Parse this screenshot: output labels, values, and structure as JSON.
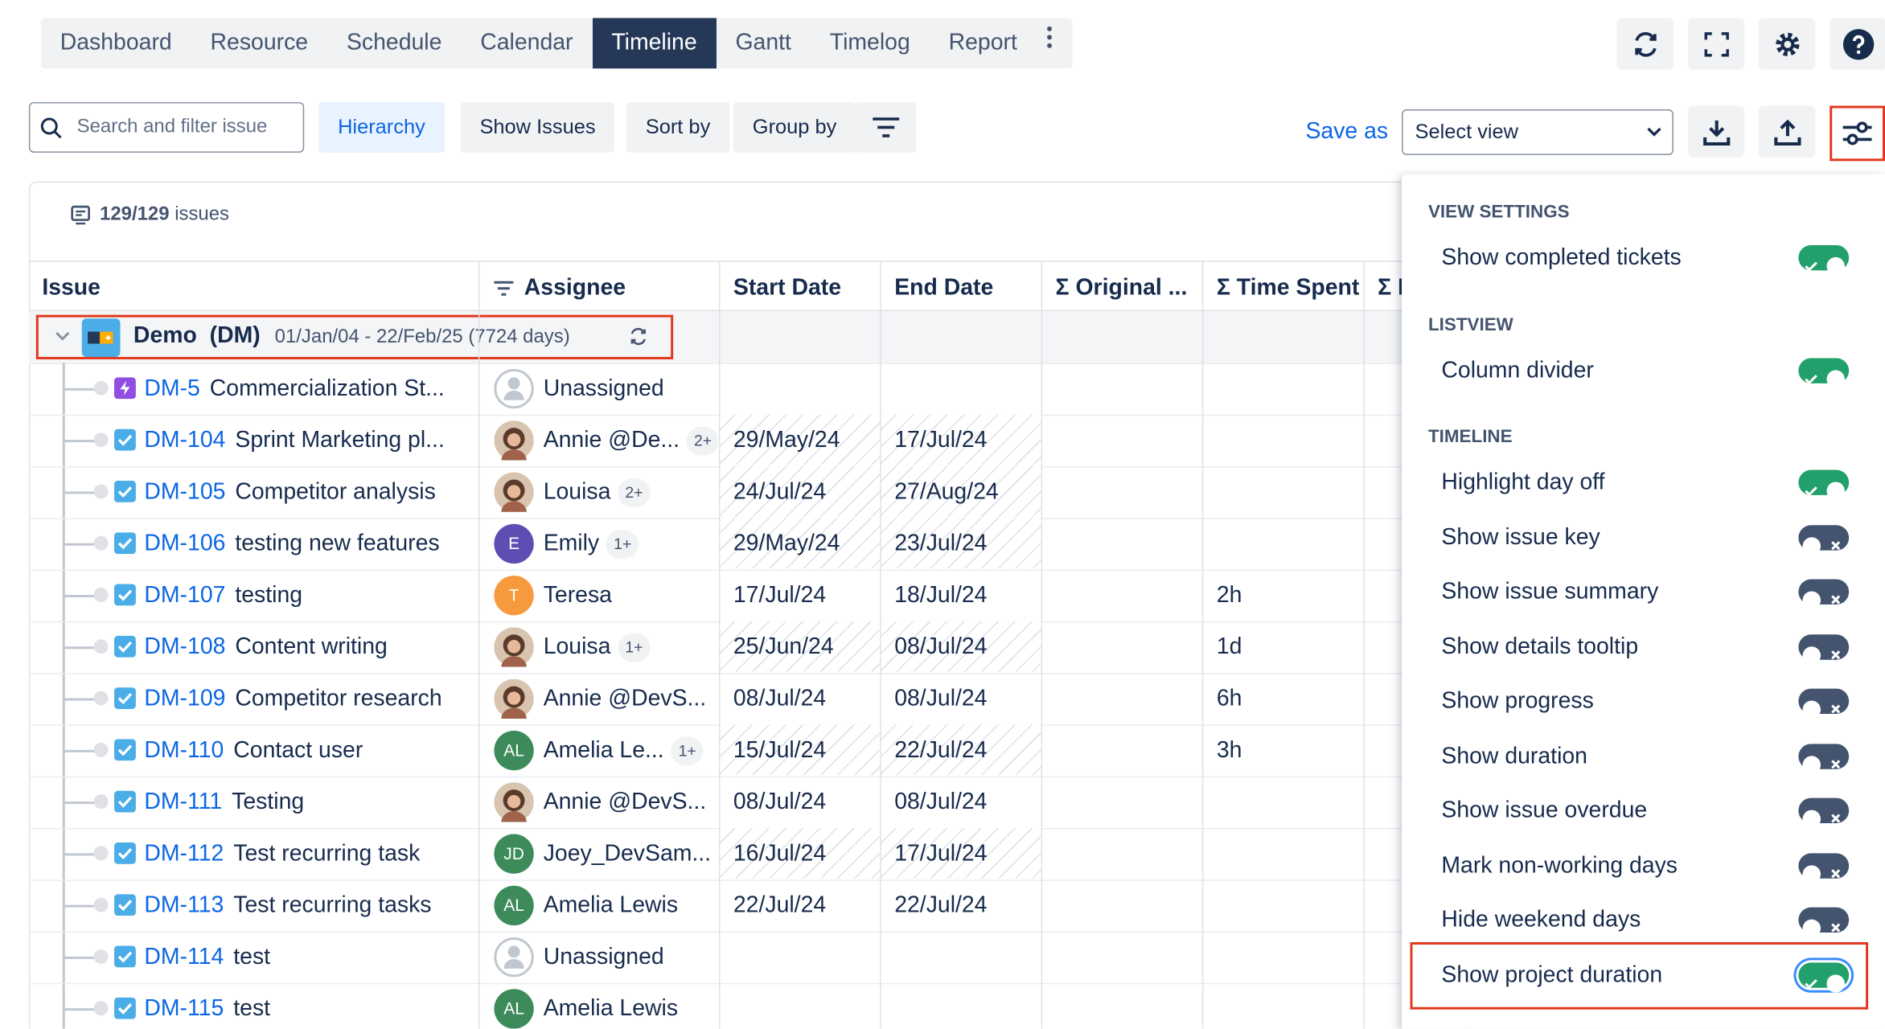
{
  "tabs": {
    "items": [
      "Dashboard",
      "Resource",
      "Schedule",
      "Calendar",
      "Timeline",
      "Gantt",
      "Timelog",
      "Report"
    ],
    "active": 4
  },
  "toolbar": {
    "search_placeholder": "Search and filter issue",
    "buttons": [
      "Hierarchy",
      "Show Issues",
      "Sort by",
      "Group by"
    ],
    "active_button": 0,
    "save_as": "Save as",
    "select_view": "Select view"
  },
  "summary": {
    "issues": "129/129",
    "issues_label": "issues"
  },
  "table": {
    "columns": [
      "Issue",
      "Assignee",
      "Start Date",
      "End Date",
      "Σ Original ...",
      "Σ Time Spent",
      "Σ I"
    ],
    "project": {
      "name": "Demo",
      "key": "(DM)",
      "dates": "01/Jan/04 - 22/Feb/25 (7724 days)"
    },
    "rows": [
      {
        "key": "DM-5",
        "summary": "Commercialization St...",
        "type": "epic",
        "assignee": "Unassigned",
        "avatar": "none"
      },
      {
        "key": "DM-104",
        "summary": "Sprint Marketing pl...",
        "type": "task",
        "assignee": "Annie @De...",
        "avatar": "photo",
        "extra": "2+",
        "start": "29/May/24",
        "end": "17/Jul/24",
        "hatched": true
      },
      {
        "key": "DM-105",
        "summary": "Competitor analysis",
        "type": "task",
        "assignee": "Louisa",
        "avatar": "photo",
        "extra": "2+",
        "start": "24/Jul/24",
        "end": "27/Aug/24",
        "hatched": true
      },
      {
        "key": "DM-106",
        "summary": "testing new features",
        "type": "task",
        "assignee": "Emily",
        "avatar": "initials",
        "initials": "E",
        "avatar_color": "#5e4db2",
        "extra": "1+",
        "start": "29/May/24",
        "end": "23/Jul/24",
        "hatched": true
      },
      {
        "key": "DM-107",
        "summary": "testing",
        "type": "task",
        "assignee": "Teresa",
        "avatar": "initials",
        "initials": "T",
        "avatar_color": "#f79a3e",
        "start": "17/Jul/24",
        "end": "18/Jul/24",
        "spent": "2h"
      },
      {
        "key": "DM-108",
        "summary": "Content writing",
        "type": "task",
        "assignee": "Louisa",
        "avatar": "photo",
        "extra": "1+",
        "start": "25/Jun/24",
        "end": "08/Jul/24",
        "spent": "1d",
        "hatched": true
      },
      {
        "key": "DM-109",
        "summary": "Competitor research",
        "type": "task",
        "assignee": "Annie @DevS...",
        "avatar": "photo",
        "start": "08/Jul/24",
        "end": "08/Jul/24",
        "spent": "6h"
      },
      {
        "key": "DM-110",
        "summary": "Contact user",
        "type": "task",
        "assignee": "Amelia Le...",
        "avatar": "initials",
        "initials": "AL",
        "avatar_color": "#3d8a5a",
        "extra": "1+",
        "start": "15/Jul/24",
        "end": "22/Jul/24",
        "spent": "3h",
        "hatched": true
      },
      {
        "key": "DM-111",
        "summary": "Testing",
        "type": "task",
        "assignee": "Annie @DevS...",
        "avatar": "photo",
        "start": "08/Jul/24",
        "end": "08/Jul/24"
      },
      {
        "key": "DM-112",
        "summary": "Test recurring task",
        "type": "task",
        "assignee": "Joey_DevSam...",
        "avatar": "initials",
        "initials": "JD",
        "avatar_color": "#3d8a5a",
        "start": "16/Jul/24",
        "end": "17/Jul/24",
        "hatched": true
      },
      {
        "key": "DM-113",
        "summary": "Test recurring tasks",
        "type": "task",
        "assignee": "Amelia Lewis",
        "avatar": "initials",
        "initials": "AL",
        "avatar_color": "#3d8a5a",
        "start": "22/Jul/24",
        "end": "22/Jul/24"
      },
      {
        "key": "DM-114",
        "summary": "test",
        "type": "task",
        "assignee": "Unassigned",
        "avatar": "none"
      },
      {
        "key": "DM-115",
        "summary": "test",
        "type": "task",
        "assignee": "Amelia Lewis",
        "avatar": "initials",
        "initials": "AL",
        "avatar_color": "#3d8a5a"
      }
    ]
  },
  "settings": {
    "sections": [
      {
        "title": "VIEW SETTINGS",
        "items": [
          {
            "label": "Show completed tickets",
            "on": true
          }
        ]
      },
      {
        "title": "LISTVIEW",
        "items": [
          {
            "label": "Column divider",
            "on": true
          }
        ]
      },
      {
        "title": "TIMELINE",
        "items": [
          {
            "label": "Highlight day off",
            "on": true
          },
          {
            "label": "Show issue key",
            "on": false
          },
          {
            "label": "Show issue summary",
            "on": false
          },
          {
            "label": "Show details tooltip",
            "on": false
          },
          {
            "label": "Show progress",
            "on": false
          },
          {
            "label": "Show duration",
            "on": false
          },
          {
            "label": "Show issue overdue",
            "on": false
          },
          {
            "label": "Mark non-working days",
            "on": false
          },
          {
            "label": "Hide weekend days",
            "on": false
          },
          {
            "label": "Show project duration",
            "on": true,
            "highlighted": true
          }
        ]
      }
    ]
  }
}
